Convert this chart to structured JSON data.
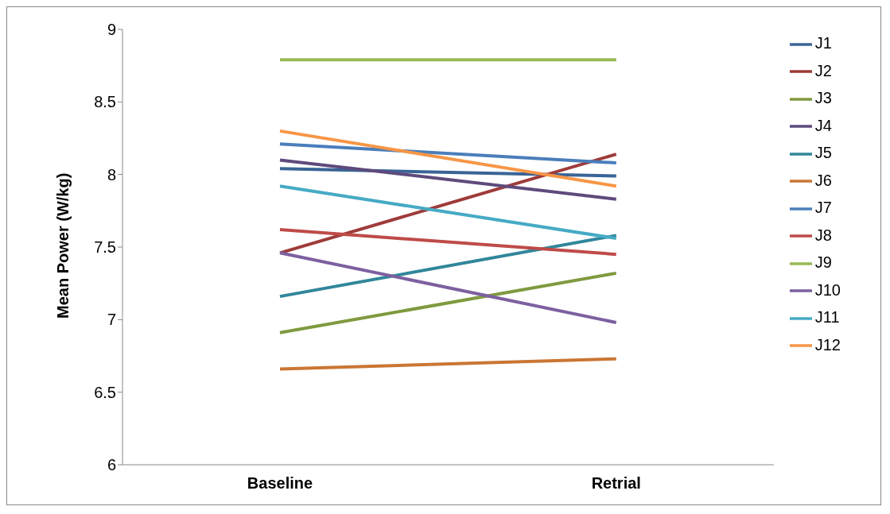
{
  "chart_data": {
    "type": "line",
    "ylabel": "Mean Power (W/kg)",
    "categories": [
      "Baseline",
      "Retrial"
    ],
    "ylim": [
      6,
      9
    ],
    "yticks": [
      6,
      6.5,
      7,
      7.5,
      8,
      8.5,
      9
    ],
    "grid": false,
    "legend": "right",
    "marker": "none",
    "line_style": "solid",
    "series": [
      {
        "name": "J1",
        "color": "#3a6496",
        "values": [
          8.04,
          7.99
        ]
      },
      {
        "name": "J2",
        "color": "#9e3b3a",
        "values": [
          7.46,
          8.14
        ]
      },
      {
        "name": "J3",
        "color": "#7f9a3f",
        "values": [
          6.91,
          7.32
        ]
      },
      {
        "name": "J4",
        "color": "#5e4a7c",
        "values": [
          8.1,
          7.83
        ]
      },
      {
        "name": "J5",
        "color": "#31869b",
        "values": [
          7.16,
          7.58
        ]
      },
      {
        "name": "J6",
        "color": "#ca7634",
        "values": [
          6.66,
          6.73
        ]
      },
      {
        "name": "J7",
        "color": "#4a7ebb",
        "values": [
          8.21,
          8.08
        ]
      },
      {
        "name": "J8",
        "color": "#be4b48",
        "values": [
          7.62,
          7.45
        ]
      },
      {
        "name": "J9",
        "color": "#98b954",
        "values": [
          8.79,
          8.79
        ]
      },
      {
        "name": "J10",
        "color": "#7d60a0",
        "values": [
          7.46,
          6.98
        ]
      },
      {
        "name": "J11",
        "color": "#46aac5",
        "values": [
          7.92,
          7.56
        ]
      },
      {
        "name": "J12",
        "color": "#f79646",
        "values": [
          8.3,
          7.92
        ]
      }
    ]
  }
}
